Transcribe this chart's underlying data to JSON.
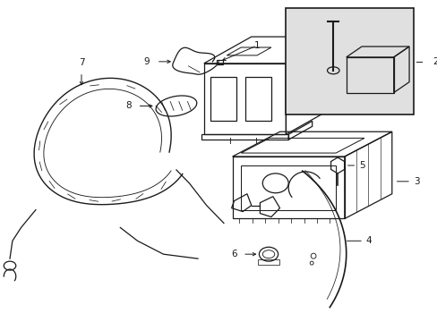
{
  "bg_color": "#ffffff",
  "line_color": "#1a1a1a",
  "fig_width": 4.89,
  "fig_height": 3.6,
  "dpi": 100,
  "box2_bg": "#e0e0e0",
  "label_fontsize": 7.5
}
